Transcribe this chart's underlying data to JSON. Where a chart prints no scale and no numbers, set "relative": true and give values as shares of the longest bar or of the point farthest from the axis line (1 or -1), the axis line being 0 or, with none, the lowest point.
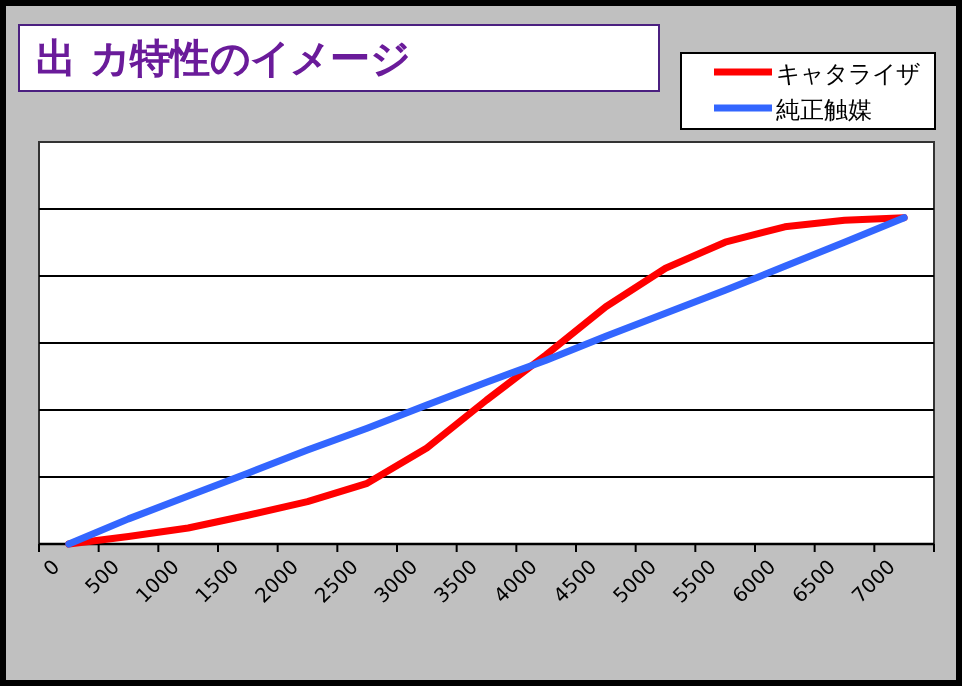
{
  "chart_data": {
    "type": "line",
    "title": "出 カ特性のイメージ",
    "relative": true,
    "categories": [
      "0",
      "500",
      "1000",
      "1500",
      "2000",
      "2500",
      "3000",
      "3500",
      "4000",
      "4500",
      "5000",
      "5500",
      "6000",
      "6500",
      "7000"
    ],
    "series": [
      {
        "name": "キャタライザ",
        "color": "#ff0000",
        "values": [
          0,
          0.023,
          0.049,
          0.088,
          0.13,
          0.186,
          0.294,
          0.441,
          0.58,
          0.727,
          0.845,
          0.925,
          0.972,
          0.992,
          1
        ]
      },
      {
        "name": "純正触媒",
        "color": "#3366ff",
        "values": [
          0,
          0.077,
          0.147,
          0.217,
          0.288,
          0.355,
          0.426,
          0.496,
          0.563,
          0.637,
          0.707,
          0.778,
          0.851,
          0.925,
          1
        ]
      }
    ],
    "grid": "y",
    "legend": "top right",
    "marker": "none",
    "line_style": "solid"
  }
}
